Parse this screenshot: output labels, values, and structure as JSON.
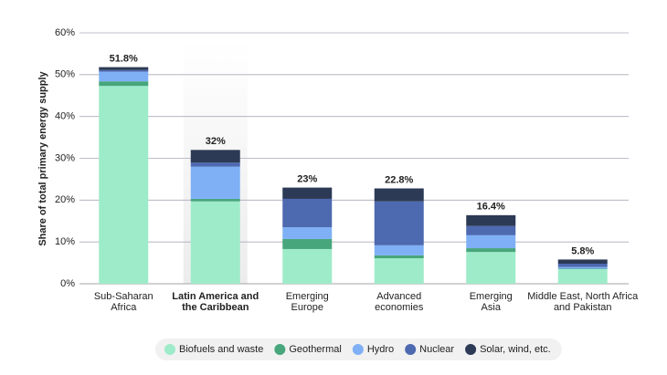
{
  "chart_data": {
    "type": "stacked-bar",
    "y_label": "Share of total primary energy supply",
    "categories": [
      [
        "Sub-Saharan",
        "Africa"
      ],
      [
        "Latin America and",
        "the Caribbean"
      ],
      [
        "Emerging",
        "Europe"
      ],
      [
        "Advanced",
        "economies"
      ],
      [
        "Emerging",
        "Asia"
      ],
      [
        "Middle East, North Africa",
        "and Pakistan"
      ]
    ],
    "highlight_index": 1,
    "series": [
      {
        "name": "Biofuels and waste",
        "color": "#9eebc9",
        "values": [
          47.3,
          19.7,
          8.3,
          6.1,
          7.6,
          3.5
        ]
      },
      {
        "name": "Geothermal",
        "color": "#47a67c",
        "values": [
          1.1,
          0.6,
          2.4,
          0.7,
          0.9,
          0.1
        ]
      },
      {
        "name": "Hydro",
        "color": "#7fb0f6",
        "values": [
          2.3,
          7.7,
          2.8,
          2.4,
          3.1,
          0.4
        ]
      },
      {
        "name": "Nuclear",
        "color": "#4d69b0",
        "values": [
          0.4,
          1.0,
          6.8,
          10.5,
          2.2,
          0.8
        ]
      },
      {
        "name": "Solar, wind, etc.",
        "color": "#2c3a55",
        "values": [
          0.7,
          3.0,
          2.7,
          3.1,
          2.6,
          1.0
        ]
      }
    ],
    "totals": [
      51.8,
      32,
      23,
      22.8,
      16.4,
      5.8
    ],
    "value_labels": [
      "51.8%",
      "32%",
      "23%",
      "22.8%",
      "16.4%",
      "5.8%"
    ],
    "ylim": [
      0,
      60
    ],
    "yticks": [
      {
        "value": 0,
        "label": "0%"
      },
      {
        "value": 10,
        "label": "10%"
      },
      {
        "value": 20,
        "label": "20%"
      },
      {
        "value": 30,
        "label": "30%"
      },
      {
        "value": 40,
        "label": "40%"
      },
      {
        "value": 50,
        "label": "50%"
      },
      {
        "value": 60,
        "label": "60%"
      }
    ],
    "grid": true
  }
}
